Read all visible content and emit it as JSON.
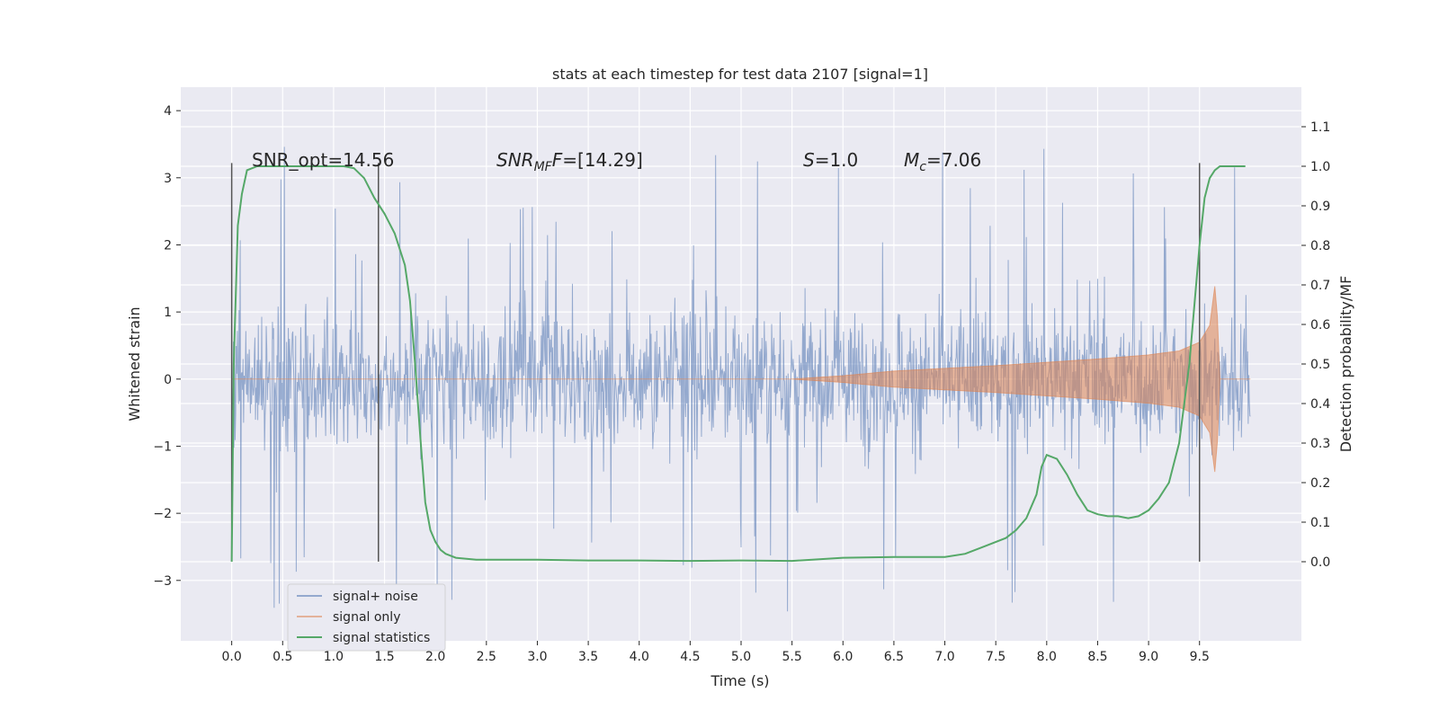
{
  "chart_data": {
    "type": "line",
    "title": "stats at each timestep for test data 2107 [signal=1]",
    "xlabel": "Time (s)",
    "ylabel": "Whitened strain",
    "ylabel_right": "Detection probability/MF",
    "xlim": [
      -0.5,
      10.5
    ],
    "ylim": [
      -3.9,
      4.35
    ],
    "ylim_right": [
      -0.2,
      1.2
    ],
    "x_ticks": [
      "0.0",
      "0.5",
      "1.0",
      "1.5",
      "2.0",
      "2.5",
      "3.0",
      "3.5",
      "4.0",
      "4.5",
      "5.0",
      "5.5",
      "6.0",
      "6.5",
      "7.0",
      "7.5",
      "8.0",
      "8.5",
      "9.0",
      "9.5"
    ],
    "y_ticks": [
      "−3",
      "−2",
      "−1",
      "0",
      "1",
      "2",
      "3",
      "4"
    ],
    "y_ticks_right": [
      "0.0",
      "0.1",
      "0.2",
      "0.3",
      "0.4",
      "0.5",
      "0.6",
      "0.7",
      "0.8",
      "0.9",
      "1.0",
      "1.1"
    ],
    "grid": true,
    "legend_placement": "lower-left",
    "annotations": {
      "snr_opt": "SNR_opt=14.56",
      "snr_mf": "SNR",
      "snr_mf_sub": "MF",
      "snr_mf_val": "=[14.29]",
      "s": "S",
      "s_val": "=1.0",
      "mc": "M",
      "mc_sub": "c",
      "mc_val": "=7.06"
    },
    "vertical_markers": [
      0.0,
      1.44,
      9.5
    ],
    "series": [
      {
        "name": "signal+ noise",
        "color": "#4c72b0",
        "envelope": {
          "x": [
            0.0,
            10.0
          ],
          "typical_abs": 1.2,
          "peak_abs": 3.5
        }
      },
      {
        "name": "signal only",
        "color": "#dd8452",
        "envelope": {
          "x": [
            5.5,
            6.0,
            6.5,
            7.0,
            7.5,
            8.0,
            8.5,
            9.0,
            9.3,
            9.5,
            9.6,
            9.66,
            9.7,
            10.0
          ],
          "y": [
            0.0,
            0.05,
            0.12,
            0.16,
            0.2,
            0.25,
            0.3,
            0.36,
            0.42,
            0.55,
            0.8,
            1.5,
            0.0,
            0.0
          ]
        }
      },
      {
        "name": "signal statistics",
        "color": "#55a868",
        "x": [
          0.0,
          0.02,
          0.06,
          0.1,
          0.15,
          0.25,
          0.5,
          0.8,
          1.0,
          1.1,
          1.2,
          1.3,
          1.4,
          1.5,
          1.6,
          1.7,
          1.75,
          1.8,
          1.85,
          1.9,
          1.95,
          2.0,
          2.05,
          2.1,
          2.2,
          2.4,
          2.6,
          3.0,
          3.5,
          4.0,
          4.5,
          5.0,
          5.5,
          6.0,
          6.5,
          7.0,
          7.2,
          7.4,
          7.6,
          7.7,
          7.8,
          7.9,
          7.95,
          8.0,
          8.1,
          8.2,
          8.3,
          8.4,
          8.5,
          8.6,
          8.7,
          8.8,
          8.9,
          9.0,
          9.1,
          9.2,
          9.3,
          9.4,
          9.5,
          9.55,
          9.6,
          9.65,
          9.7,
          9.8,
          9.9,
          9.95
        ],
        "y": [
          0.0,
          0.5,
          0.85,
          0.93,
          0.99,
          1.0,
          1.0,
          1.0,
          1.0,
          1.0,
          0.995,
          0.97,
          0.92,
          0.88,
          0.83,
          0.75,
          0.66,
          0.5,
          0.32,
          0.15,
          0.08,
          0.05,
          0.03,
          0.02,
          0.01,
          0.005,
          0.005,
          0.005,
          0.003,
          0.003,
          0.002,
          0.003,
          0.002,
          0.01,
          0.012,
          0.012,
          0.02,
          0.04,
          0.06,
          0.08,
          0.11,
          0.17,
          0.24,
          0.27,
          0.26,
          0.22,
          0.17,
          0.13,
          0.12,
          0.115,
          0.115,
          0.11,
          0.115,
          0.13,
          0.16,
          0.2,
          0.3,
          0.5,
          0.8,
          0.92,
          0.97,
          0.99,
          1.0,
          1.0,
          1.0,
          1.0
        ]
      }
    ]
  }
}
